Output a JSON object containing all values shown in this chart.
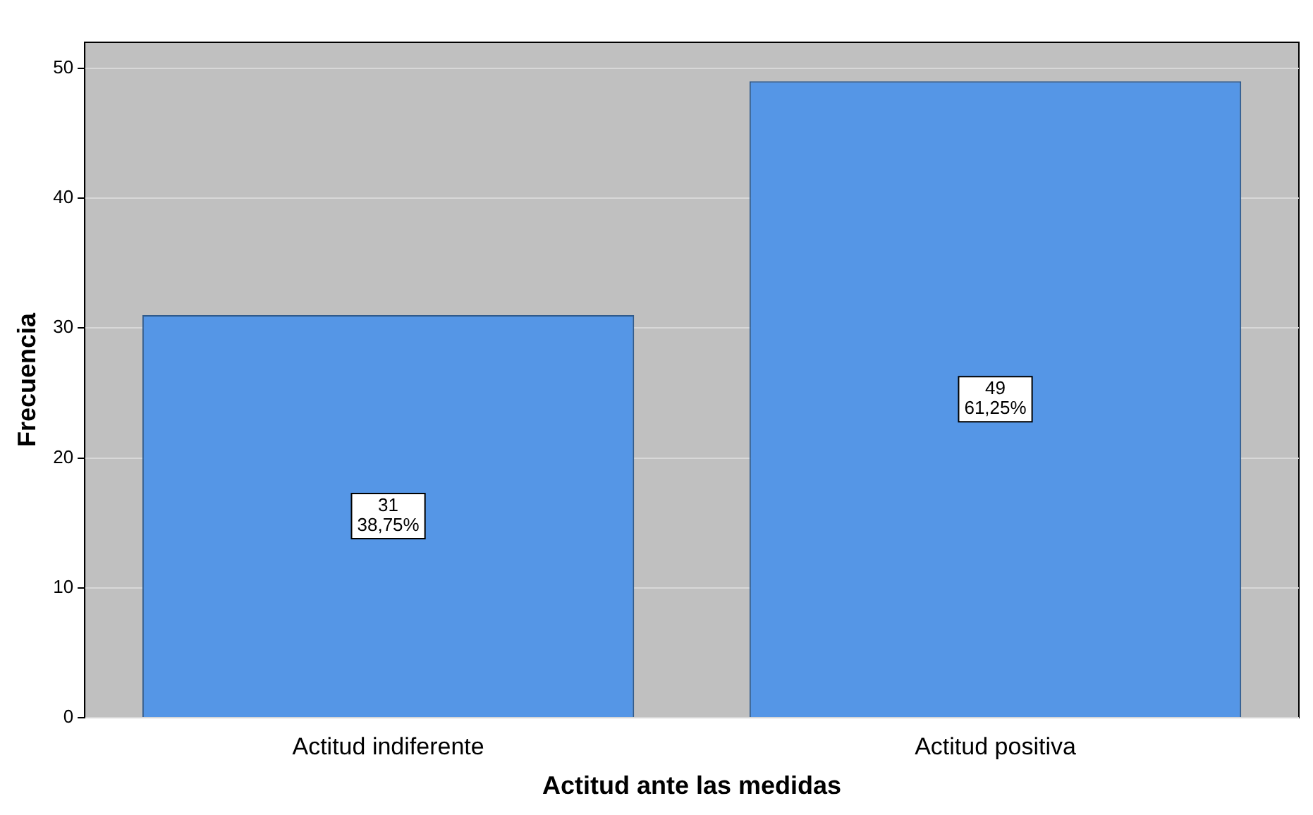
{
  "chart_data": {
    "type": "bar",
    "xlabel": "Actitud ante las medidas",
    "ylabel": "Frecuencia",
    "categories": [
      "Actitud indiferente",
      "Actitud positiva"
    ],
    "values": [
      31,
      49
    ],
    "color": "#5596e6",
    "value_labels": [
      "31\n38,75%",
      "49\n61,25%"
    ],
    "ylim": [
      0,
      52
    ],
    "yticks": [
      0,
      10,
      20,
      30,
      40,
      50
    ],
    "grid": "y",
    "legend": false
  }
}
